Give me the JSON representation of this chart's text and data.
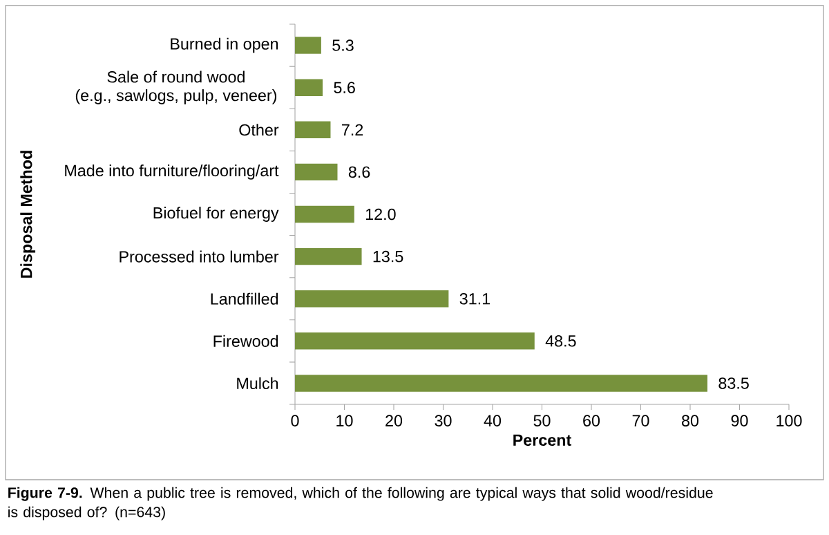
{
  "chart_data": {
    "type": "bar",
    "orientation": "horizontal",
    "categories": [
      "Burned in open",
      "Sale of round wood (e.g., sawlogs, pulp, veneer)",
      "Other",
      "Made into furniture/flooring/art",
      "Biofuel for energy",
      "Processed into lumber",
      "Landfilled",
      "Firewood",
      "Mulch"
    ],
    "values": [
      5.3,
      5.6,
      7.2,
      8.6,
      12.0,
      13.5,
      31.1,
      48.5,
      83.5
    ],
    "value_labels": [
      "5.3",
      "5.6",
      "7.2",
      "8.6",
      "12.0",
      "13.5",
      "31.1",
      "48.5",
      "83.5"
    ],
    "color": "#77923c",
    "xlim": [
      0,
      100
    ],
    "xticks": [
      0,
      10,
      20,
      30,
      40,
      50,
      60,
      70,
      80,
      90,
      100
    ],
    "xlabel": "Percent",
    "ylabel": "Disposal Method",
    "grid": false,
    "annotations": [
      "**Figure 7-9.** When a public tree is removed, which of the following are typical ways that solid wood/residue is disposed of? (n=643)"
    ]
  }
}
